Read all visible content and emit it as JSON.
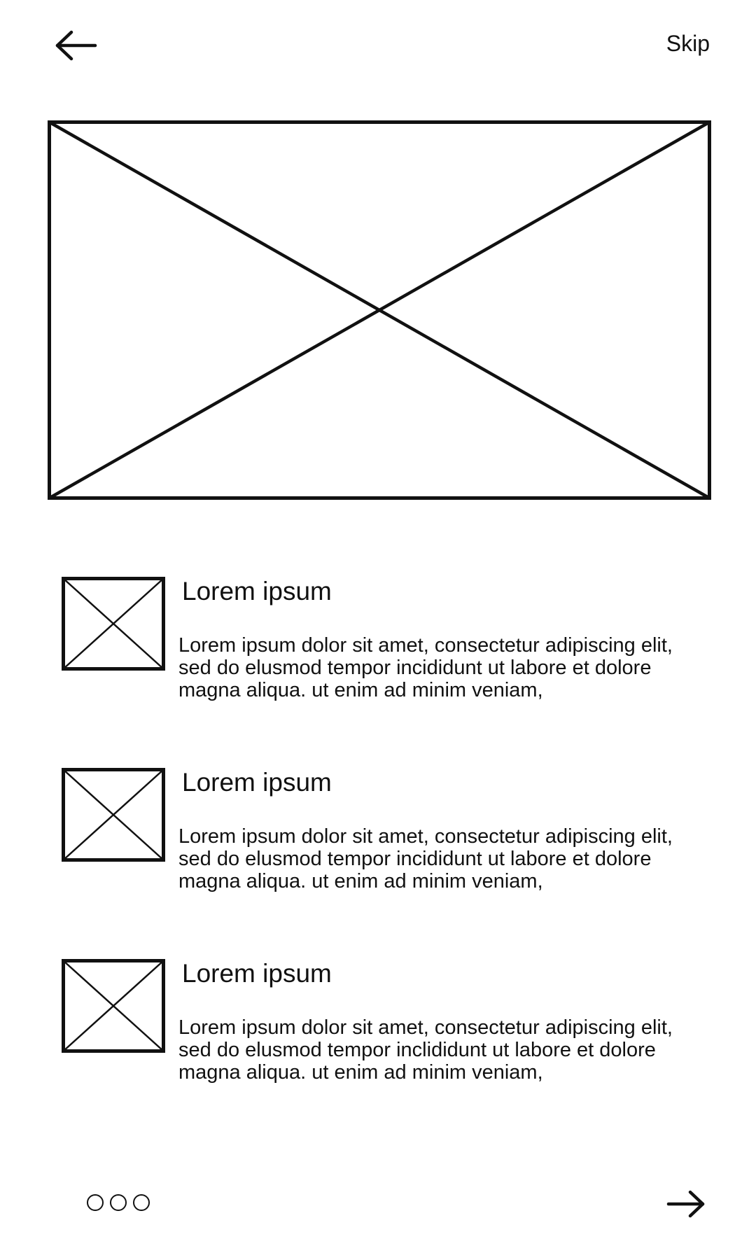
{
  "header": {
    "back_icon": "arrow-left-icon",
    "skip_label": "Skip"
  },
  "hero": {
    "icon": "image-placeholder-icon"
  },
  "features": [
    {
      "icon": "image-placeholder-icon",
      "title": "Lorem ipsum",
      "description": "Lorem ipsum dolor sit amet, consectetur adipiscing elit, sed do elusmod tempor incididunt ut labore et dolore magna aliqua. ut enim ad minim veniam,"
    },
    {
      "icon": "image-placeholder-icon",
      "title": "Lorem ipsum",
      "description": "Lorem ipsum dolor sit amet, consectetur adipiscing elit, sed do elusmod tempor incididunt ut labore et dolore magna aliqua. ut enim ad minim veniam,"
    },
    {
      "icon": "image-placeholder-icon",
      "title": "Lorem ipsum",
      "description": "Lorem ipsum dolor sit amet, consectetur adipiscing elit, sed do elusmod tempor inclididunt ut labore et dolore magna aliqua. ut enim ad minim veniam,"
    }
  ],
  "pager": {
    "count": 3
  },
  "footer": {
    "next_icon": "arrow-right-icon"
  }
}
